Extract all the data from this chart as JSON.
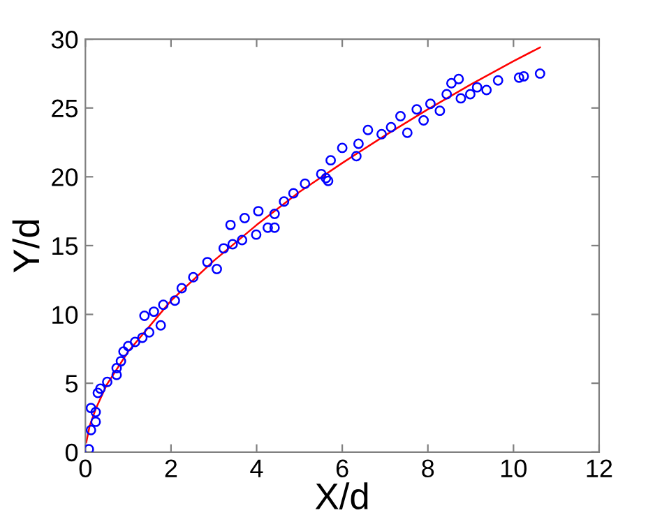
{
  "chart_data": {
    "type": "scatter",
    "xlabel": "X/d",
    "ylabel": "Y/d",
    "xlim": [
      0,
      12
    ],
    "ylim": [
      0,
      30
    ],
    "xticks": [
      0,
      2,
      4,
      6,
      8,
      10,
      12
    ],
    "yticks": [
      0,
      5,
      10,
      15,
      20,
      25,
      30
    ],
    "grid": false,
    "legend": false,
    "marker": "circle",
    "series": [
      {
        "color": "#0000ff",
        "x": [
          0.08,
          0.13,
          0.24,
          0.13,
          0.24,
          0.29,
          0.35,
          0.51,
          0.73,
          0.73,
          0.83,
          0.89,
          1.0,
          1.16,
          1.33,
          1.49,
          1.38,
          1.6,
          1.76,
          1.82,
          2.09,
          2.25,
          2.52,
          2.85,
          3.07,
          3.23,
          3.39,
          3.44,
          3.66,
          3.72,
          3.99,
          4.26,
          4.04,
          4.42,
          4.42,
          4.64,
          4.86,
          5.13,
          5.51,
          5.67,
          5.73,
          5.62,
          6.0,
          6.33,
          6.6,
          6.38,
          6.92,
          7.14,
          7.36,
          7.52,
          7.74,
          7.9,
          8.06,
          8.28,
          8.44,
          8.55,
          8.72,
          8.77,
          8.99,
          9.15,
          9.37,
          9.64,
          10.13,
          10.24,
          10.62
        ],
        "values": [
          0.2,
          1.6,
          2.2,
          3.2,
          2.9,
          4.3,
          4.6,
          5.1,
          5.6,
          6.1,
          6.6,
          7.3,
          7.7,
          8.0,
          8.3,
          8.7,
          9.9,
          10.2,
          9.2,
          10.7,
          11.0,
          11.9,
          12.7,
          13.8,
          13.3,
          14.8,
          16.5,
          15.1,
          15.4,
          17.0,
          15.8,
          16.3,
          17.5,
          17.3,
          16.3,
          18.2,
          18.8,
          19.5,
          20.2,
          19.7,
          21.2,
          19.9,
          22.1,
          21.5,
          23.4,
          22.4,
          23.1,
          23.6,
          24.4,
          23.2,
          24.9,
          24.1,
          25.3,
          24.8,
          26.0,
          26.8,
          27.1,
          25.7,
          26.0,
          26.5,
          26.3,
          27.0,
          27.2,
          27.3,
          27.5
        ]
      },
      {
        "type": "line",
        "color": "#ff0000",
        "marker": "none",
        "x": [
          0.02,
          0.1,
          0.25,
          0.5,
          1,
          2,
          3,
          4,
          5,
          6,
          7,
          8,
          9,
          10,
          10.62
        ],
        "values": [
          0.7,
          1.9,
          3.2,
          4.9,
          7.3,
          11.0,
          13.9,
          16.5,
          18.9,
          21.0,
          23.0,
          24.9,
          26.7,
          28.4,
          29.4
        ]
      }
    ]
  }
}
